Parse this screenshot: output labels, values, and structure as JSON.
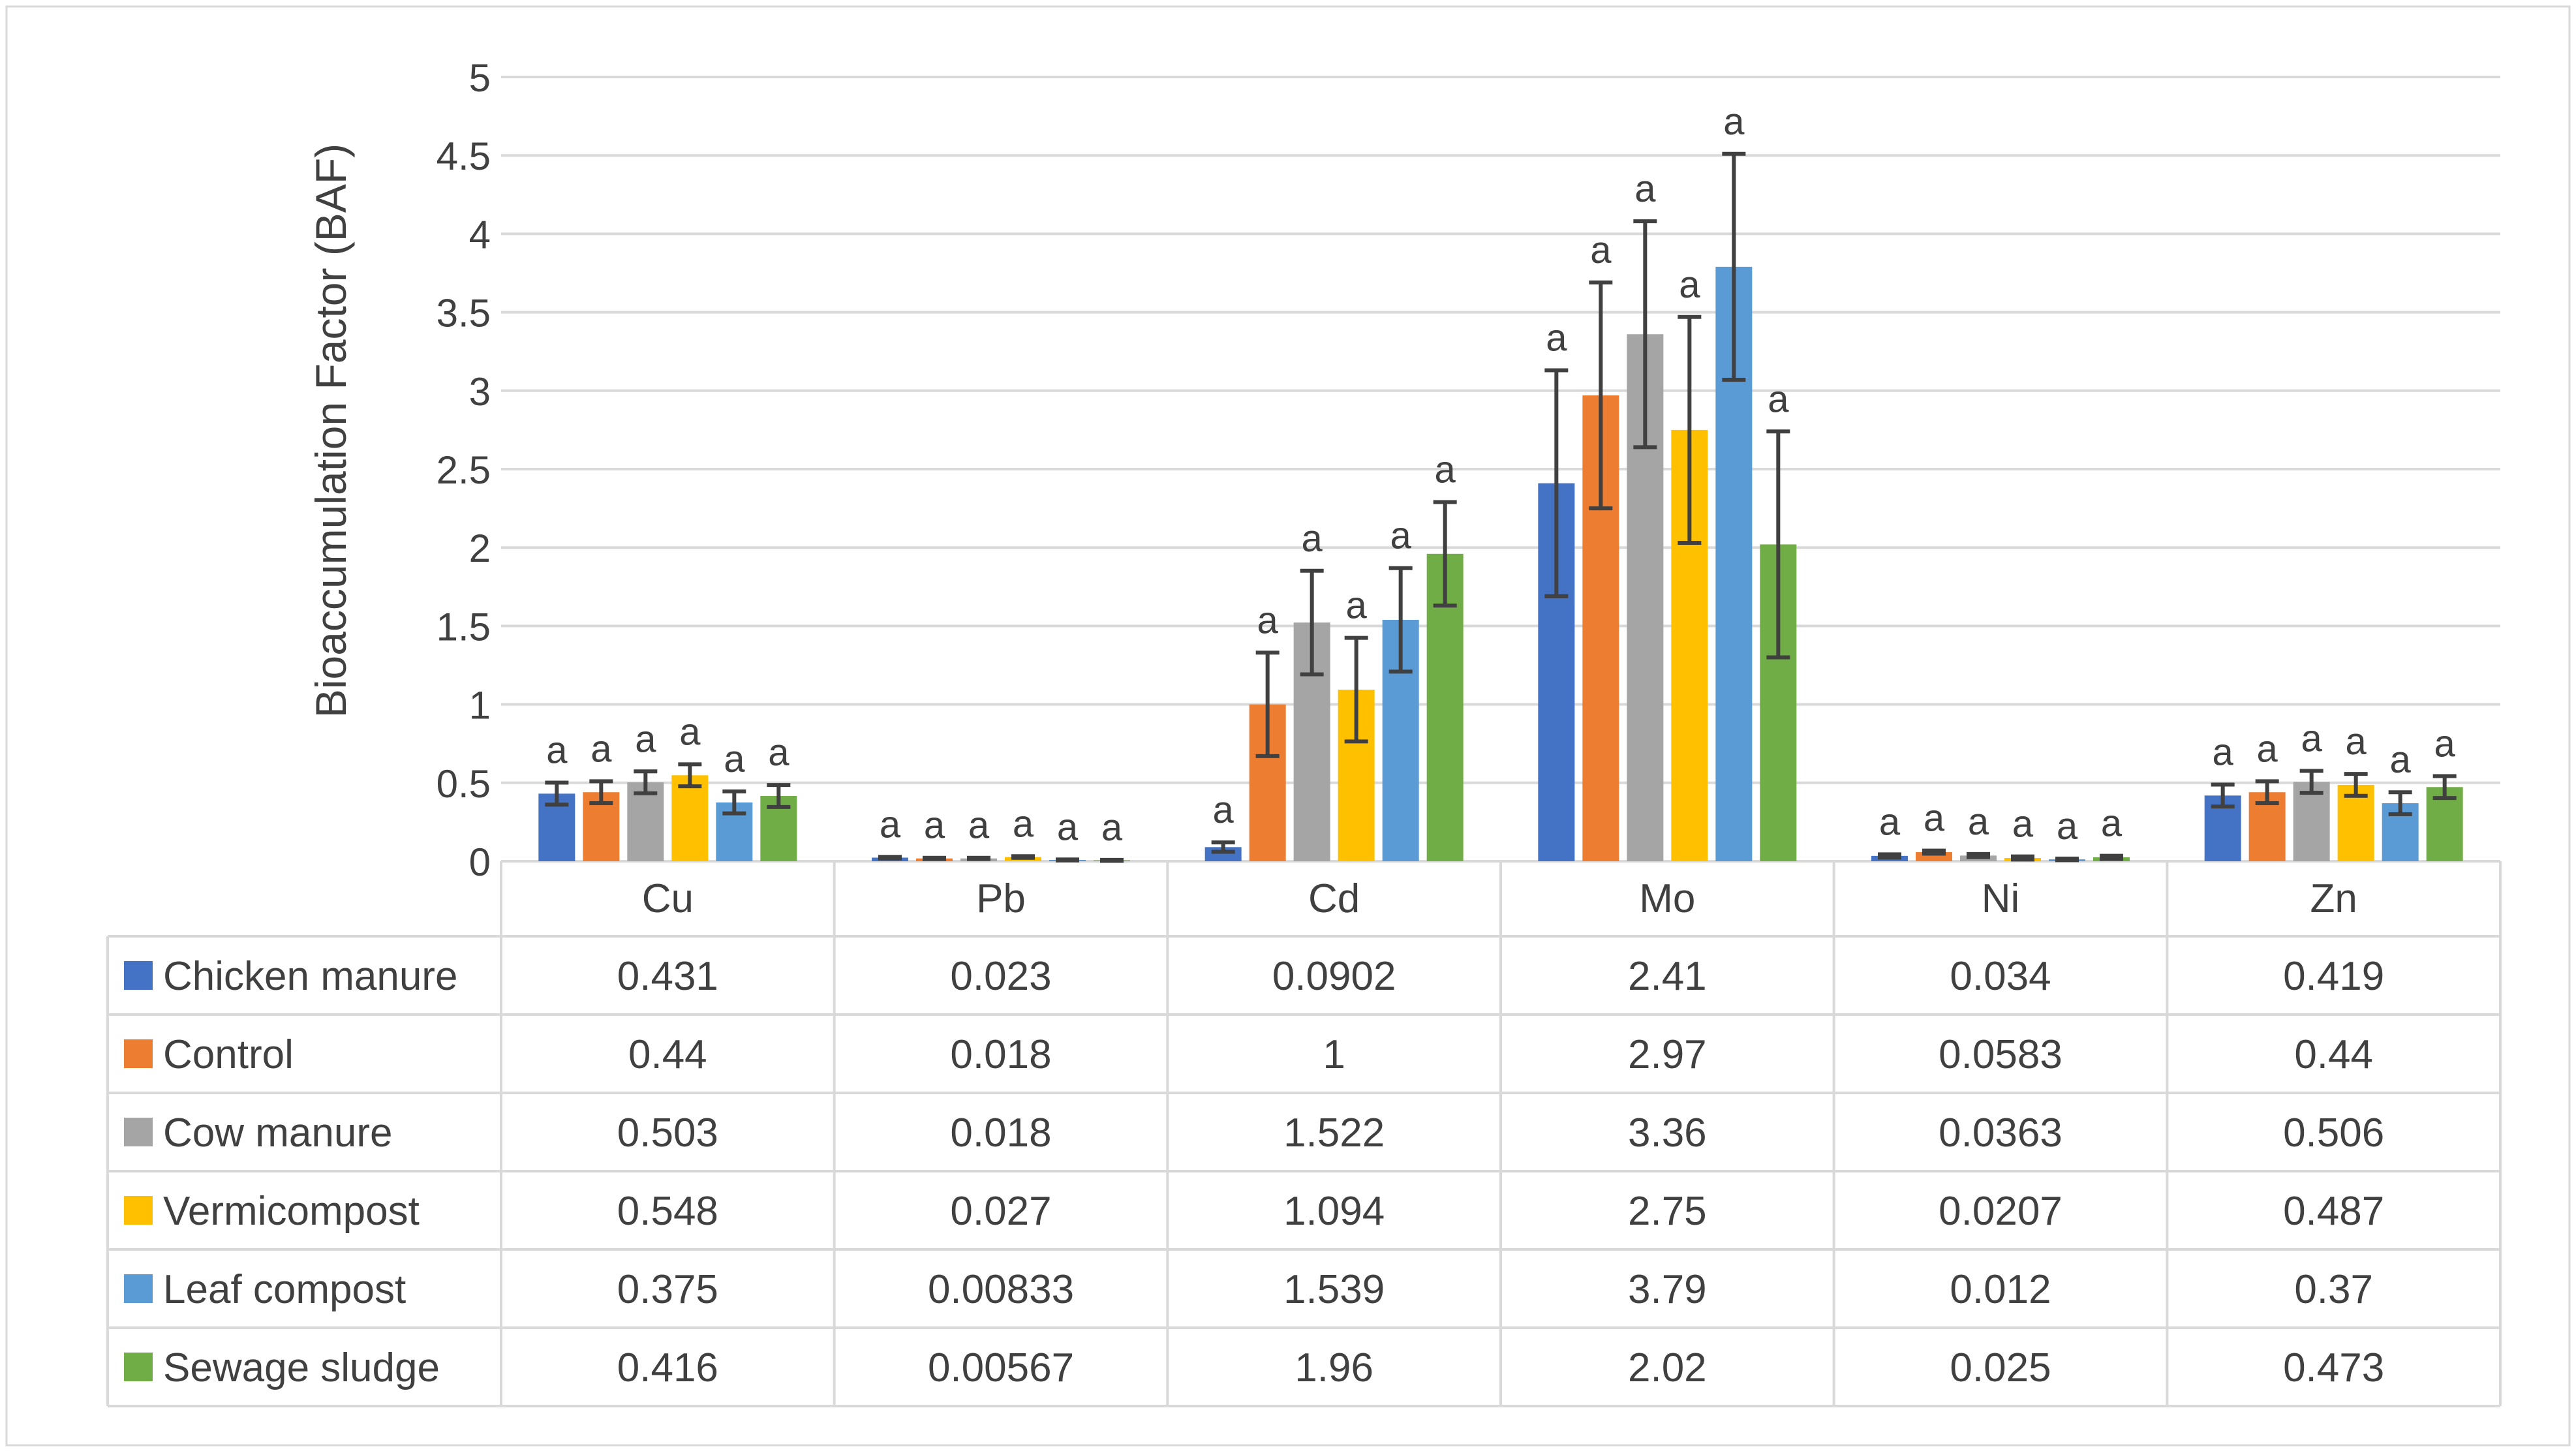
{
  "chart_data": {
    "type": "bar",
    "title": "",
    "xlabel": "",
    "ylabel": "Bioaccumulation Factor (BAF)",
    "ylim": [
      0,
      5
    ],
    "yticks": [
      "0",
      "0.5",
      "1",
      "1.5",
      "2",
      "2.5",
      "3",
      "3.5",
      "4",
      "4.5",
      "5"
    ],
    "gridlines": true,
    "legend": "data-table-below",
    "categories": [
      "Cu",
      "Pb",
      "Cd",
      "Mo",
      "Ni",
      "Zn"
    ],
    "series": [
      {
        "name": "Chicken manure",
        "color": "#4472C4",
        "values": [
          0.431,
          0.023,
          0.0902,
          2.41,
          0.034,
          0.419
        ],
        "labels": [
          "0.431",
          "0.023",
          "0.0902",
          "2.41",
          "0.034",
          "0.419"
        ],
        "errors": [
          0.07,
          0.005,
          0.03,
          0.72,
          0.01,
          0.07
        ],
        "sig": [
          "a",
          "a",
          "a",
          "a",
          "a",
          "a"
        ]
      },
      {
        "name": "Control",
        "color": "#ED7D31",
        "values": [
          0.44,
          0.018,
          1,
          2.97,
          0.0583,
          0.44
        ],
        "labels": [
          "0.44",
          "0.018",
          "1",
          "2.97",
          "0.0583",
          "0.44"
        ],
        "errors": [
          0.07,
          0.004,
          0.33,
          0.72,
          0.01,
          0.07
        ],
        "sig": [
          "a",
          "a",
          "a",
          "a",
          "a",
          "a"
        ]
      },
      {
        "name": "Cow manure",
        "color": "#A5A5A5",
        "values": [
          0.503,
          0.018,
          1.522,
          3.36,
          0.0363,
          0.506
        ],
        "labels": [
          "0.503",
          "0.018",
          "1.522",
          "3.36",
          "0.0363",
          "0.506"
        ],
        "errors": [
          0.07,
          0.004,
          0.33,
          0.72,
          0.01,
          0.07
        ],
        "sig": [
          "a",
          "a",
          "a",
          "a",
          "a",
          "a"
        ]
      },
      {
        "name": "Vermicompost",
        "color": "#FFC000",
        "values": [
          0.548,
          0.027,
          1.094,
          2.75,
          0.0207,
          0.487
        ],
        "labels": [
          "0.548",
          "0.027",
          "1.094",
          "2.75",
          "0.0207",
          "0.487"
        ],
        "errors": [
          0.07,
          0.005,
          0.33,
          0.72,
          0.01,
          0.07
        ],
        "sig": [
          "a",
          "a",
          "a",
          "a",
          "a",
          "a"
        ]
      },
      {
        "name": "Leaf compost",
        "color": "#5B9BD5",
        "values": [
          0.375,
          0.00833,
          1.539,
          3.79,
          0.012,
          0.37
        ],
        "labels": [
          "0.375",
          "0.00833",
          "1.539",
          "3.79",
          "0.012",
          "0.37"
        ],
        "errors": [
          0.07,
          0.003,
          0.33,
          0.72,
          0.005,
          0.07
        ],
        "sig": [
          "a",
          "a",
          "a",
          "a",
          "a",
          "a"
        ]
      },
      {
        "name": "Sewage sludge",
        "color": "#70AD47",
        "values": [
          0.416,
          0.00567,
          1.96,
          2.02,
          0.025,
          0.473
        ],
        "labels": [
          "0.416",
          "0.00567",
          "1.96",
          "2.02",
          "0.025",
          "0.473"
        ],
        "errors": [
          0.07,
          0.003,
          0.33,
          0.72,
          0.01,
          0.07
        ],
        "sig": [
          "a",
          "a",
          "a",
          "a",
          "a",
          "a"
        ]
      }
    ]
  }
}
